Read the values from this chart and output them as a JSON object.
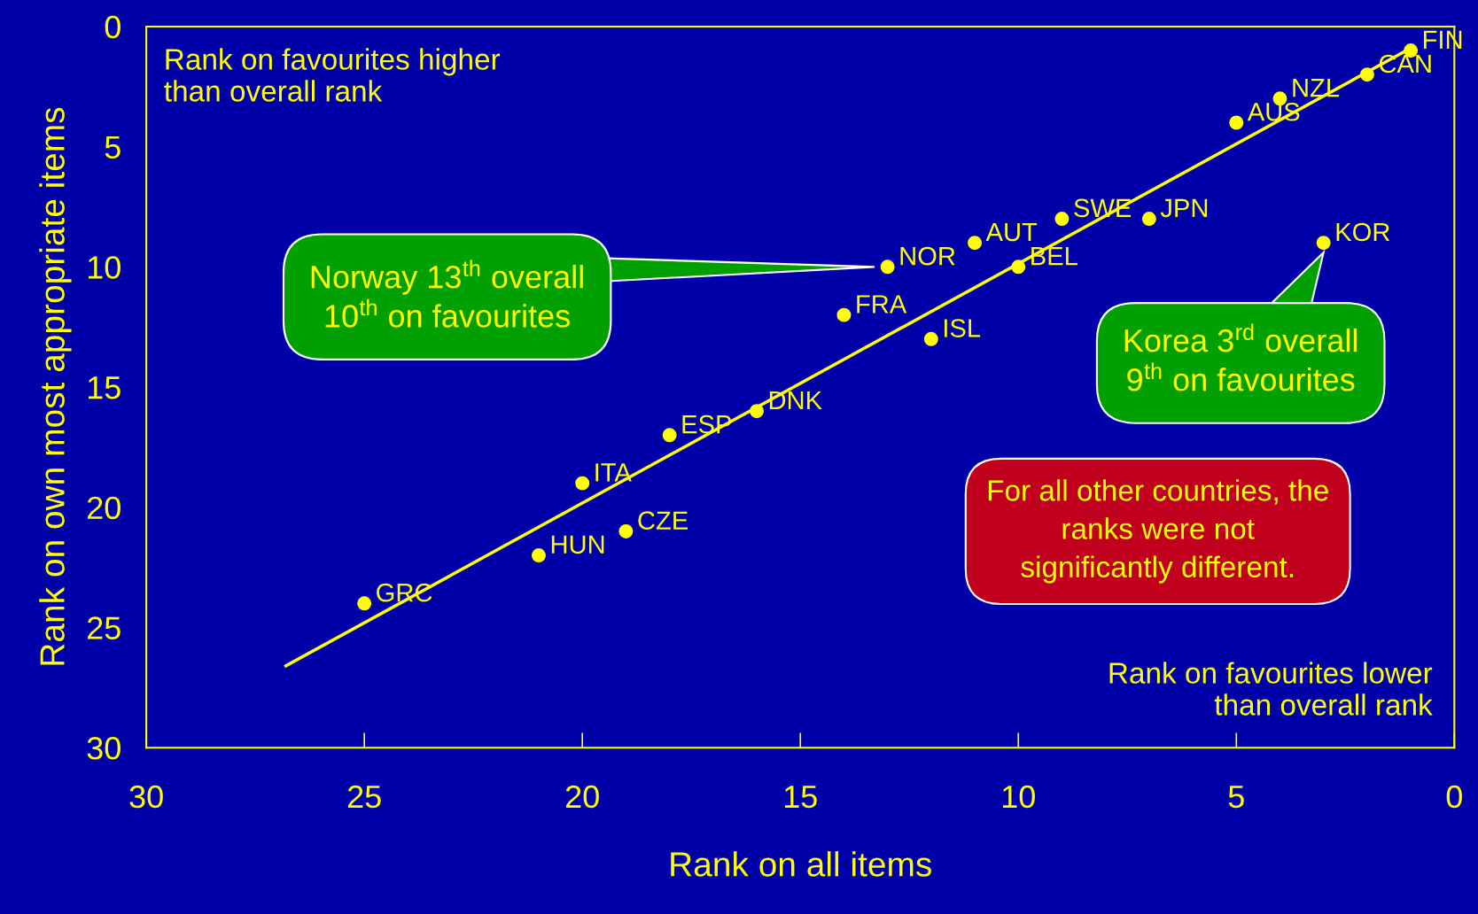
{
  "chart_data": {
    "type": "scatter",
    "xlabel": "Rank on all items",
    "ylabel": "Rank on own most appropriate items",
    "xlim": [
      30,
      0
    ],
    "ylim": [
      30,
      0
    ],
    "xticks": [
      30,
      25,
      20,
      15,
      10,
      5,
      0
    ],
    "yticks": [
      0,
      5,
      10,
      15,
      20,
      25,
      30
    ],
    "grid": false,
    "legend": false,
    "marker": "circle",
    "series": [
      {
        "type": "scatter",
        "color": "#ffff00",
        "x": [
          1,
          2,
          4,
          5,
          7,
          9,
          3,
          11,
          10,
          13,
          14,
          12,
          16,
          18,
          20,
          19,
          21,
          25
        ],
        "values": [
          1,
          2,
          3,
          4,
          8,
          8,
          9,
          9,
          10,
          10,
          12,
          13,
          16,
          17,
          19,
          21,
          22,
          24
        ]
      },
      {
        "type": "line",
        "color": "#ffff00",
        "line_style": "solid",
        "marker": "none",
        "x": [
          26.8,
          1
        ],
        "values": [
          26.6,
          0.9
        ]
      }
    ],
    "annotations": [
      {
        "text": "FIN",
        "x": 1,
        "y": 1
      },
      {
        "text": "CAN",
        "x": 2,
        "y": 2
      },
      {
        "text": "NZL",
        "x": 4,
        "y": 3
      },
      {
        "text": "AUS",
        "x": 5,
        "y": 4
      },
      {
        "text": "JPN",
        "x": 7,
        "y": 8
      },
      {
        "text": "SWE",
        "x": 9,
        "y": 8
      },
      {
        "text": "KOR",
        "x": 3,
        "y": 9
      },
      {
        "text": "AUT",
        "x": 11,
        "y": 9
      },
      {
        "text": "BEL",
        "x": 10,
        "y": 10
      },
      {
        "text": "NOR",
        "x": 13,
        "y": 10
      },
      {
        "text": "FRA",
        "x": 14,
        "y": 12
      },
      {
        "text": "ISL",
        "x": 12,
        "y": 13
      },
      {
        "text": "DNK",
        "x": 16,
        "y": 16
      },
      {
        "text": "ESP",
        "x": 18,
        "y": 17
      },
      {
        "text": "ITA",
        "x": 20,
        "y": 19
      },
      {
        "text": "CZE",
        "x": 19,
        "y": 21
      },
      {
        "text": "HUN",
        "x": 21,
        "y": 22
      },
      {
        "text": "GRC",
        "x": 25,
        "y": 24
      },
      "Rank on favourites higher\nthan overall rank",
      "Rank on favourites lower\nthan overall rank",
      "Norway 13$^{th}$ overall\n10$^{th}$ on favourites",
      "Korea 3$^{rd}$ overall\n9$^{th}$ on favourites",
      "For all other countries, the\nranks were not\nsignificantly different."
    ]
  }
}
